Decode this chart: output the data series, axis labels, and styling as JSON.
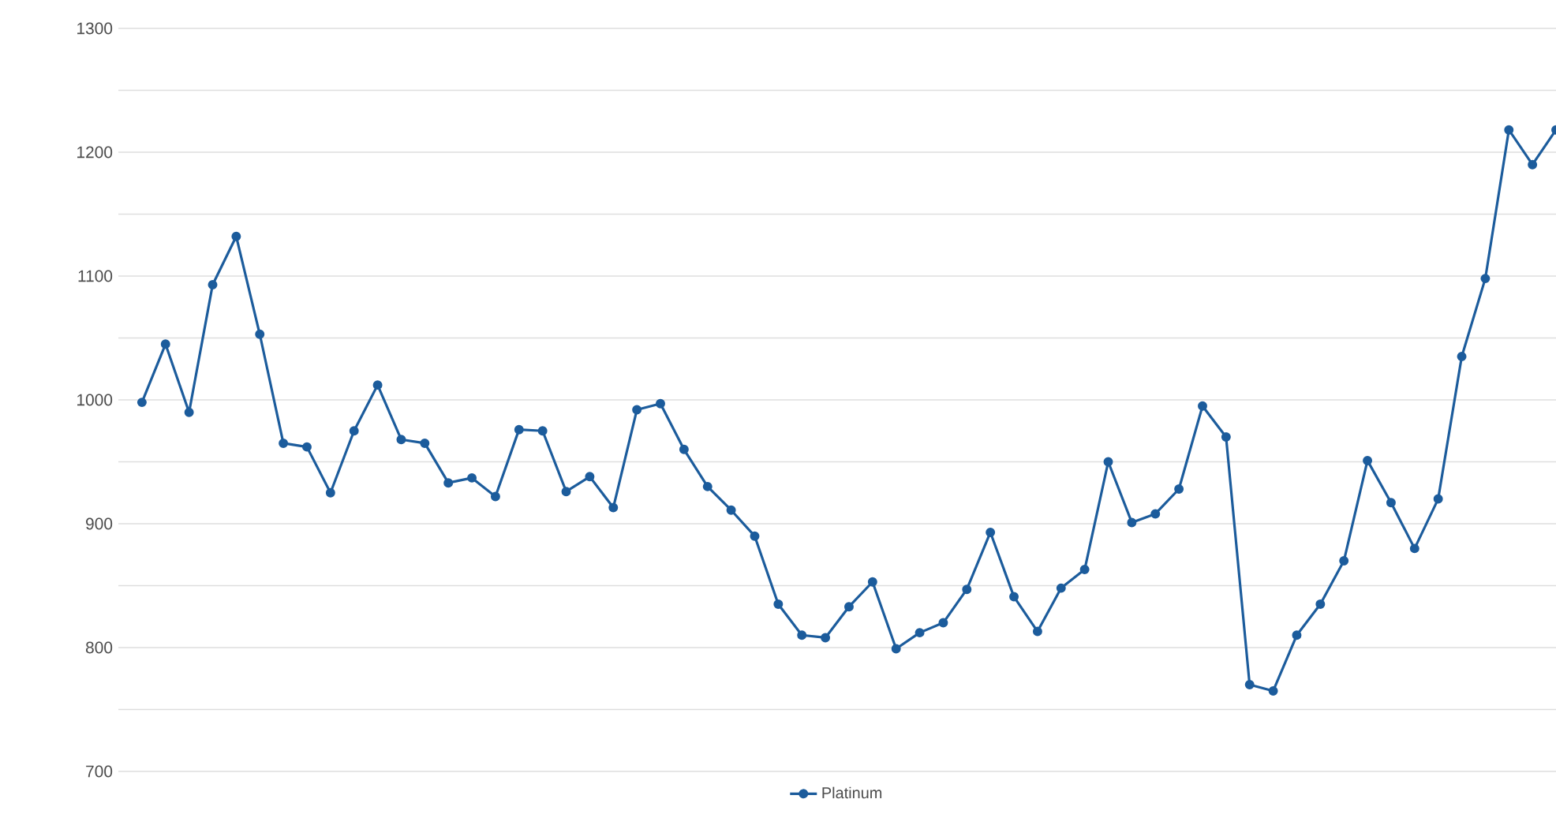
{
  "chart_data": {
    "type": "line",
    "categories": [
      null,
      null,
      null,
      null,
      null,
      null,
      null,
      null,
      null,
      null,
      null,
      null,
      null,
      null,
      null,
      null,
      null,
      null,
      null,
      null,
      null,
      null,
      null,
      null,
      null,
      null,
      null,
      null,
      null,
      null,
      null,
      null,
      null,
      null,
      null,
      null,
      null,
      null,
      null,
      null,
      null,
      null,
      null,
      null,
      null,
      null,
      null,
      null,
      null,
      null,
      null,
      null,
      null,
      null,
      null,
      null,
      null,
      null,
      null,
      null,
      null
    ],
    "series": [
      {
        "name": "Platinum",
        "color": "#1c5c9c",
        "values": [
          998,
          1045,
          990,
          1093,
          1132,
          1053,
          965,
          962,
          925,
          975,
          1012,
          968,
          965,
          933,
          937,
          922,
          976,
          975,
          926,
          938,
          913,
          992,
          997,
          960,
          930,
          911,
          890,
          835,
          810,
          808,
          833,
          853,
          799,
          812,
          820,
          847,
          893,
          841,
          813,
          848,
          863,
          950,
          901,
          908,
          928,
          995,
          970,
          770,
          765,
          810,
          835,
          870,
          951,
          917,
          880,
          920,
          1035,
          1098,
          1218,
          1190,
          1218
        ]
      }
    ],
    "ylim": [
      700,
      1300
    ],
    "yticks": [
      700,
      {
        "value": 750,
        "label": null
      },
      800,
      {
        "value": 850,
        "label": null
      },
      900,
      {
        "value": 950,
        "label": null
      },
      1000,
      {
        "value": 1050,
        "label": null
      },
      1100,
      {
        "value": 1150,
        "label": null
      },
      1200,
      {
        "value": 1250,
        "label": null
      },
      1300
    ],
    "grid": true,
    "legend": "bottom",
    "marker": "circle"
  }
}
